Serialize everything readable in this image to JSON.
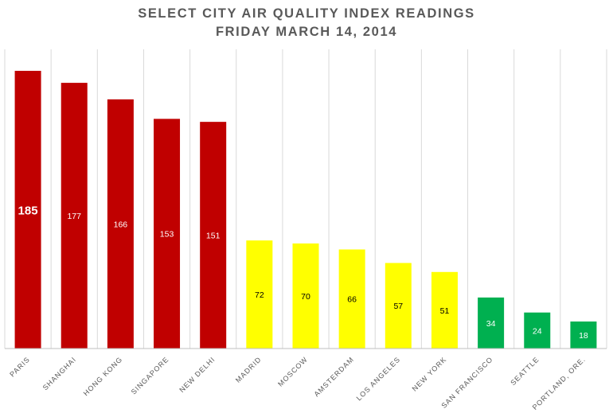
{
  "chart_data": {
    "type": "bar",
    "title_lines": [
      "SELECT CITY AIR QUALITY INDEX READINGS",
      "FRIDAY MARCH 14, 2014"
    ],
    "xlabel": "",
    "ylabel": "",
    "ylim": [
      0,
      200
    ],
    "grid": "vertical",
    "legend": "none",
    "categories": [
      "PARIS",
      "SHANGHAI",
      "HONG KONG",
      "SINGAPORE",
      "NEW DELHI",
      "MADRID",
      "MOSCOW",
      "AMSTERDAM",
      "LOS ANGELES",
      "NEW YORK",
      "SAN FRANCISCO",
      "SEATTLE",
      "PORTLAND, ORE."
    ],
    "values": [
      185,
      177,
      166,
      153,
      151,
      72,
      70,
      66,
      57,
      51,
      34,
      24,
      18
    ],
    "bar_colors": [
      "#c00000",
      "#c00000",
      "#c00000",
      "#c00000",
      "#c00000",
      "#ffff00",
      "#ffff00",
      "#ffff00",
      "#ffff00",
      "#ffff00",
      "#00b050",
      "#00b050",
      "#00b050"
    ],
    "label_colors": [
      "#ffffff",
      "#ffffff",
      "#ffffff",
      "#ffffff",
      "#ffffff",
      "#000000",
      "#000000",
      "#000000",
      "#000000",
      "#000000",
      "#ffffff",
      "#ffffff",
      "#ffffff"
    ],
    "highlighted_label": "PARIS"
  }
}
